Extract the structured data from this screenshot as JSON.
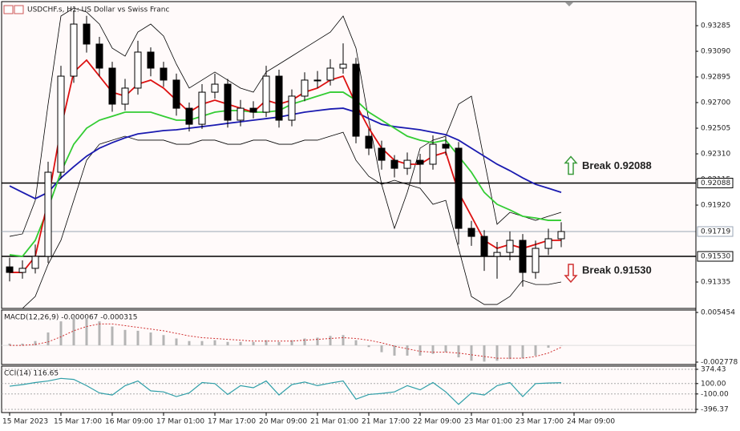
{
  "chart_data": [
    {
      "type": "candlestick",
      "title": "USDCHF.s, H1:  US Dollar vs Swiss Franc",
      "candles": [
        [
          0.9145,
          0.9152,
          0.9134,
          0.91408
        ],
        [
          0.91408,
          0.915,
          0.9136,
          0.91439
        ],
        [
          0.91439,
          0.9162,
          0.914,
          0.9153
        ],
        [
          0.9153,
          0.9225,
          0.9148,
          0.9217
        ],
        [
          0.9217,
          0.9298,
          0.9212,
          0.92901
        ],
        [
          0.92901,
          0.934,
          0.9285,
          0.93297
        ],
        [
          0.93297,
          0.9336,
          0.9308,
          0.93145
        ],
        [
          0.93145,
          0.932,
          0.929,
          0.92962
        ],
        [
          0.92962,
          0.9301,
          0.9263,
          0.92688
        ],
        [
          0.92688,
          0.9288,
          0.9264,
          0.9281
        ],
        [
          0.9281,
          0.9317,
          0.9276,
          0.93084
        ],
        [
          0.93084,
          0.9312,
          0.929,
          0.92962
        ],
        [
          0.92962,
          0.9301,
          0.9282,
          0.92871
        ],
        [
          0.92871,
          0.9292,
          0.926,
          0.92657
        ],
        [
          0.92657,
          0.927,
          0.9248,
          0.92535
        ],
        [
          0.92535,
          0.9284,
          0.925,
          0.92779
        ],
        [
          0.92779,
          0.9292,
          0.9273,
          0.9284
        ],
        [
          0.9284,
          0.9288,
          0.9251,
          0.92566
        ],
        [
          0.92566,
          0.9272,
          0.9252,
          0.92657
        ],
        [
          0.92657,
          0.9271,
          0.9258,
          0.92627
        ],
        [
          0.92627,
          0.9298,
          0.9259,
          0.92901
        ],
        [
          0.92901,
          0.9295,
          0.9251,
          0.92566
        ],
        [
          0.92566,
          0.928,
          0.9252,
          0.92749
        ],
        [
          0.92749,
          0.9293,
          0.9271,
          0.92871
        ],
        [
          0.92871,
          0.9294,
          0.9281,
          0.92871
        ],
        [
          0.92871,
          0.9303,
          0.9283,
          0.92962
        ],
        [
          0.92962,
          0.9315,
          0.9292,
          0.92992
        ],
        [
          0.92992,
          0.9304,
          0.9239,
          0.92444
        ],
        [
          0.92444,
          0.925,
          0.923,
          0.92353
        ],
        [
          0.92353,
          0.9241,
          0.9219,
          0.92261
        ],
        [
          0.92261,
          0.923,
          0.9213,
          0.922
        ],
        [
          0.922,
          0.9232,
          0.9215,
          0.92261
        ],
        [
          0.92261,
          0.9231,
          0.9208,
          0.92231
        ],
        [
          0.92231,
          0.9245,
          0.9219,
          0.92383
        ],
        [
          0.92383,
          0.9244,
          0.923,
          0.92353
        ],
        [
          0.92353,
          0.924,
          0.9162,
          0.91743
        ],
        [
          0.91743,
          0.918,
          0.9161,
          0.91682
        ],
        [
          0.91682,
          0.9173,
          0.9142,
          0.9153
        ],
        [
          0.9153,
          0.9164,
          0.9136,
          0.9156
        ],
        [
          0.9156,
          0.9172,
          0.915,
          0.91652
        ],
        [
          0.91652,
          0.917,
          0.913,
          0.91408
        ],
        [
          0.91408,
          0.9165,
          0.9136,
          0.91591
        ],
        [
          0.91591,
          0.9174,
          0.9154,
          0.91664
        ],
        [
          0.91664,
          0.9179,
          0.916,
          0.91719
        ]
      ],
      "series": [
        {
          "color": "#000000",
          "values": [
            0.91682,
            0.91701,
            0.91956,
            0.92688,
            0.93358,
            0.93419,
            0.93389,
            0.93297,
            0.93114,
            0.93053,
            0.93236,
            0.93297,
            0.93206,
            0.92992,
            0.9281,
            0.92871,
            0.92932,
            0.92871,
            0.9281,
            0.92779,
            0.92932,
            0.92992,
            0.93053,
            0.93114,
            0.93175,
            0.93236,
            0.93358,
            0.93114,
            0.92566,
            0.92078,
            0.91743,
            0.92017,
            0.92353,
            0.92414,
            0.92444,
            0.92688,
            0.92749,
            0.92261,
            0.91774,
            0.91865,
            0.91835,
            0.91804,
            0.91835,
            0.91865
          ]
        },
        {
          "color": "#000000",
          "values": [
            0.91134,
            0.91134,
            0.91225,
            0.91469,
            0.91652,
            0.91956,
            0.92261,
            0.92383,
            0.92414,
            0.92444,
            0.92414,
            0.92414,
            0.92414,
            0.92383,
            0.92383,
            0.92414,
            0.92414,
            0.92383,
            0.92383,
            0.92414,
            0.92414,
            0.92383,
            0.92383,
            0.92414,
            0.92414,
            0.92444,
            0.92474,
            0.92261,
            0.92139,
            0.92078,
            0.92109,
            0.92078,
            0.92048,
            0.91926,
            0.91956,
            0.91591,
            0.91225,
            0.91164,
            0.91164,
            0.91225,
            0.91347,
            0.91316,
            0.91316,
            0.91335
          ]
        },
        {
          "color": "#1a1ab0",
          "values": [
            0.92066,
            0.92017,
            0.91969,
            0.92017,
            0.92127,
            0.92212,
            0.92292,
            0.92353,
            0.92395,
            0.92432,
            0.92462,
            0.92474,
            0.92487,
            0.92493,
            0.92505,
            0.92517,
            0.92529,
            0.92542,
            0.92554,
            0.92566,
            0.92578,
            0.9259,
            0.92609,
            0.92627,
            0.92639,
            0.92651,
            0.92657,
            0.92627,
            0.92578,
            0.92535,
            0.92517,
            0.92505,
            0.92493,
            0.92474,
            0.92456,
            0.92414,
            0.92353,
            0.92292,
            0.92231,
            0.92182,
            0.92127,
            0.92078,
            0.92048,
            0.92017
          ]
        },
        {
          "color": "#33cc33",
          "values": [
            0.91542,
            0.9153,
            0.91652,
            0.91896,
            0.9217,
            0.92383,
            0.92505,
            0.92566,
            0.92596,
            0.92627,
            0.92627,
            0.92627,
            0.92596,
            0.92566,
            0.92566,
            0.92596,
            0.92627,
            0.92639,
            0.92639,
            0.92627,
            0.92627,
            0.92639,
            0.92688,
            0.92718,
            0.92749,
            0.92779,
            0.92779,
            0.92718,
            0.92627,
            0.92566,
            0.92505,
            0.92444,
            0.92414,
            0.92395,
            0.92414,
            0.92292,
            0.9217,
            0.92017,
            0.91926,
            0.91883,
            0.91835,
            0.91822,
            0.91804,
            0.91804
          ]
        },
        {
          "color": "#dd1111",
          "values": [
            0.91408,
            0.91408,
            0.9153,
            0.91956,
            0.92505,
            0.92932,
            0.93023,
            0.92901,
            0.92779,
            0.92749,
            0.9284,
            0.92871,
            0.9281,
            0.92718,
            0.92627,
            0.92688,
            0.92718,
            0.92688,
            0.92657,
            0.92627,
            0.92718,
            0.92688,
            0.92718,
            0.92779,
            0.9281,
            0.92871,
            0.92901,
            0.92688,
            0.92505,
            0.92353,
            0.92261,
            0.92231,
            0.92231,
            0.92292,
            0.92322,
            0.92017,
            0.91835,
            0.91652,
            0.91591,
            0.91621,
            0.91591,
            0.91621,
            0.91652,
            0.91652
          ]
        }
      ],
      "ylim": [
        0.91134,
        0.93468
      ],
      "yticks": [
        0.93285,
        {
          "value": 0.9309,
          "label": "0.93090"
        },
        0.92895,
        {
          "value": 0.927,
          "label": "0.92700"
        },
        0.92505,
        {
          "value": 0.9231,
          "label": "0.92310"
        },
        0.92115,
        {
          "value": 0.9192,
          "label": "0.91920"
        },
        0.91335
      ],
      "levels": [
        {
          "value": 0.92088,
          "label": "0.92088",
          "color": "#000000"
        },
        {
          "value": 0.9153,
          "label": "0.91530",
          "color": "#000000"
        },
        {
          "value": 0.91719,
          "label": "0.91719",
          "color": "#9aa6b4"
        }
      ],
      "annotations": [
        {
          "text": "Break 0.92088",
          "direction": "up",
          "color": "#3a9a3a"
        },
        {
          "text": "Break 0.91530",
          "direction": "down",
          "color": "#d03030"
        }
      ],
      "x_labels": [
        "15 Mar 2023",
        "15 Mar 17:00",
        "16 Mar 09:00",
        "17 Mar 01:00",
        "17 Mar 17:00",
        "20 Mar 09:00",
        "21 Mar 01:00",
        "21 Mar 17:00",
        "22 Mar 09:00",
        "23 Mar 01:00",
        "23 Mar 17:00",
        "24 Mar 09:00"
      ]
    },
    {
      "type": "histogram",
      "title": "MACD(12,26,9) -0.000067 -0.000315",
      "values": [
        0.000284,
        0.000284,
        0.00071,
        0.00213,
        0.003976,
        0.004686,
        0.004544,
        0.003976,
        0.003124,
        0.002556,
        0.002414,
        0.00213,
        0.001704,
        0.001136,
        0.00071,
        0.00071,
        0.000852,
        0.000568,
        0.000568,
        0.000568,
        0.000852,
        0.000568,
        0.000852,
        0.001136,
        0.001278,
        0.001562,
        0.001704,
        0.000852,
        -0.000284,
        -0.001136,
        -0.001704,
        -0.001704,
        -0.001704,
        -0.00142,
        -0.001136,
        -0.001988,
        -0.002556,
        -0.002698,
        -0.002556,
        -0.002272,
        -0.00213,
        -0.001704,
        -0.0004,
        -6.7e-05
      ],
      "signal": [
        0,
        0,
        0.000142,
        0.000568,
        0.00142,
        0.002414,
        0.003124,
        0.00355,
        0.00355,
        0.003266,
        0.002982,
        0.002698,
        0.002414,
        0.001988,
        0.001562,
        0.001278,
        0.001136,
        0.000994,
        0.000852,
        0.00071,
        0.00071,
        0.00071,
        0.00071,
        0.000852,
        0.000994,
        0.001136,
        0.001278,
        0.001136,
        0.000852,
        0.000426,
        -0.000142,
        -0.000568,
        -0.000994,
        -0.001136,
        -0.001136,
        -0.001278,
        -0.001562,
        -0.001846,
        -0.00213,
        -0.00213,
        -0.00213,
        -0.001846,
        -0.001278,
        -0.000315
      ],
      "color": "#b4b4b4",
      "signal_color": "#d03030",
      "ylim": [
        -0.002778,
        0.005454
      ],
      "yticks": [
        0.005454,
        -0.002778
      ]
    },
    {
      "type": "line",
      "title": "CCI(14) 116.65",
      "values": [
        50,
        80,
        120,
        150,
        200,
        180,
        60,
        -80,
        -120,
        60,
        150,
        -40,
        -60,
        -150,
        -80,
        120,
        100,
        -110,
        60,
        20,
        150,
        -120,
        80,
        130,
        60,
        110,
        150,
        -200,
        -110,
        -90,
        -60,
        60,
        -20,
        120,
        -60,
        -300,
        -80,
        -120,
        60,
        120,
        -150,
        100,
        110,
        116.65
      ],
      "color": "#2f9fa8",
      "ylim": [
        -396.37,
        374.43
      ],
      "yticks": [
        374.43,
        {
          "value": 100,
          "label": "100.00"
        },
        {
          "value": -100,
          "label": "-100.00"
        },
        -396.37
      ]
    }
  ]
}
